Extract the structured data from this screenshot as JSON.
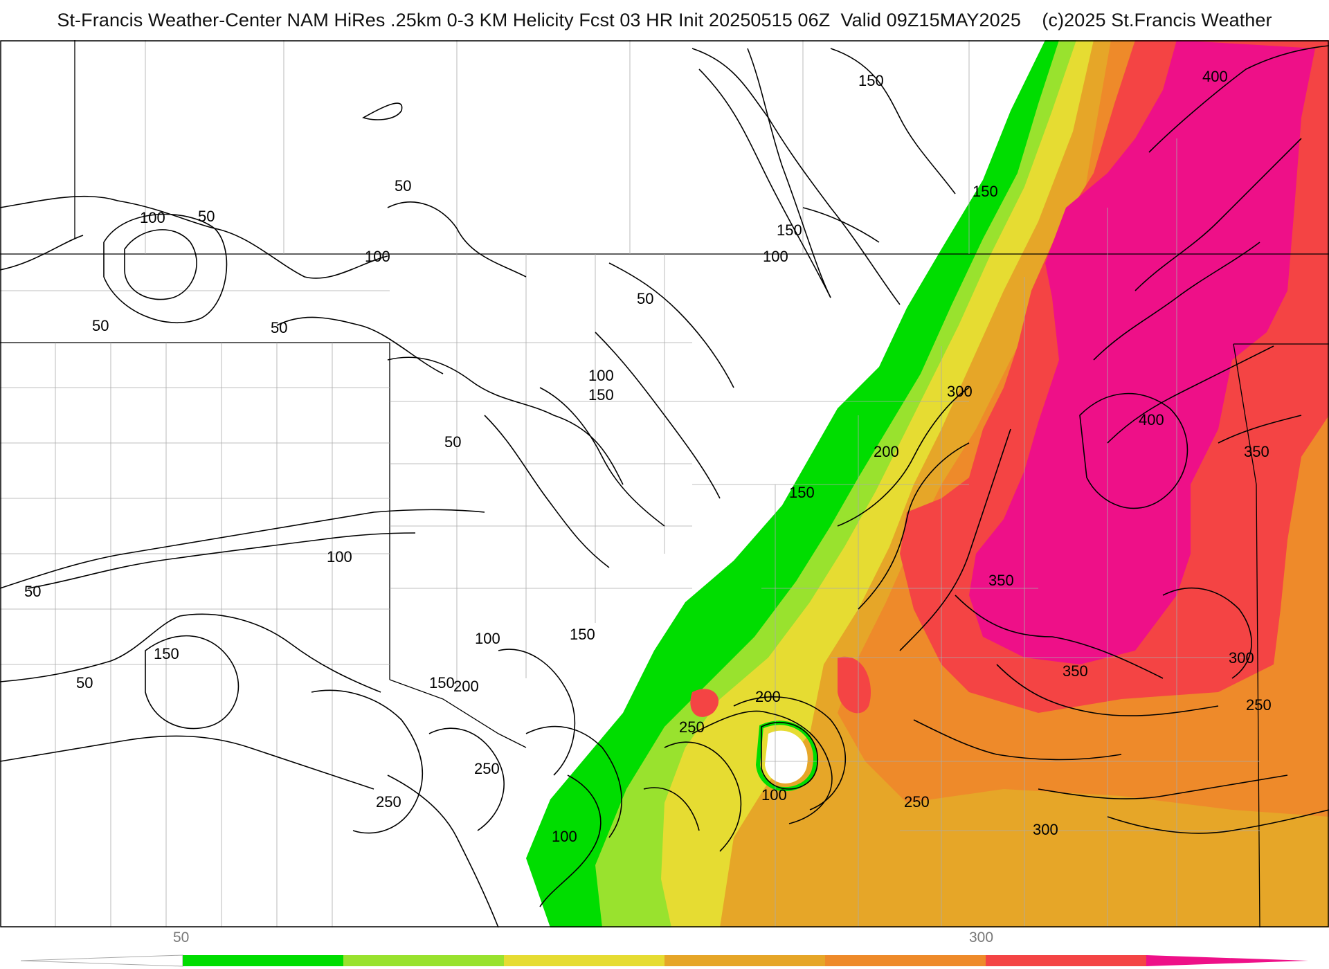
{
  "header": {
    "title": "St-Francis Weather-Center NAM HiRes .25km 0-3 KM Helicity Fcst 03 HR Init 20250515 06Z  Valid 09Z15MAY2025    (c)2025 St.Francis Weather"
  },
  "map": {
    "field": "0-3 KM Helicity",
    "contour_labels": [
      "150",
      "400",
      "150",
      "50",
      "150",
      "100",
      "50",
      "100",
      "50",
      "100",
      "50",
      "50",
      "100",
      "150",
      "50",
      "300",
      "200",
      "400",
      "350",
      "150",
      "50",
      "100",
      "350",
      "100",
      "150",
      "200",
      "150",
      "250",
      "200",
      "350",
      "300",
      "250",
      "50",
      "150",
      "250",
      "100",
      "100",
      "250",
      "250",
      "300"
    ],
    "colors": {
      "band_50_100": "#00dd00",
      "band_100_150": "#99e22e",
      "band_150_200": "#e6dc32",
      "band_200_250": "#e6a628",
      "band_250_300": "#ee8a2a",
      "band_300_350": "#f44444",
      "band_350_plus": "#ee1088",
      "contour": "#000000",
      "boundaries": "#aaaaaa"
    }
  },
  "colorbar": {
    "label_50": "50",
    "label_300": "300",
    "colors": [
      "#00dd00",
      "#99e22e",
      "#e6dc32",
      "#e6a628",
      "#ee8a2a",
      "#f44444",
      "#ee1088"
    ]
  }
}
